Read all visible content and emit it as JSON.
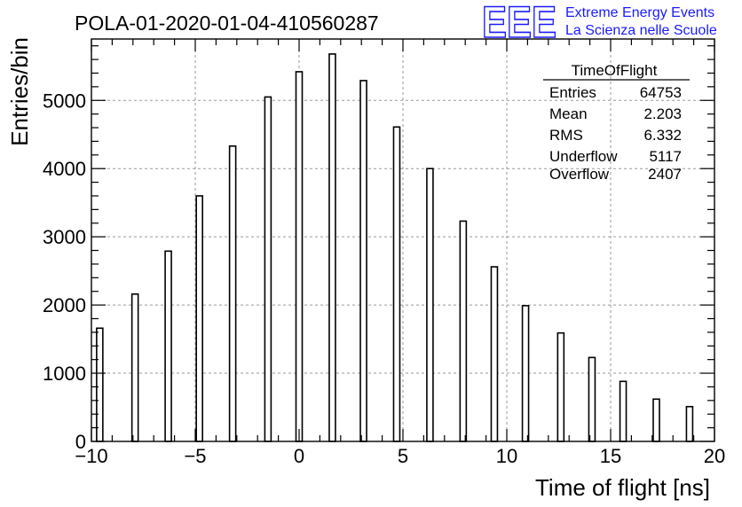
{
  "chart_data": {
    "type": "bar",
    "title": "POLA-01-2020-01-04-410560287",
    "xlabel": "Time of flight [ns]",
    "ylabel": "Entries/bin",
    "xlim": [
      -10,
      20
    ],
    "ylim": [
      0,
      5900
    ],
    "xticks": [
      "−10",
      "−5",
      "0",
      "5",
      "10",
      "15",
      "20"
    ],
    "yticks": [
      "0",
      "1000",
      "2000",
      "3000",
      "4000",
      "5000"
    ],
    "grid": true,
    "x": [
      -9.6,
      -7.9,
      -6.3,
      -4.8,
      -3.2,
      -1.5,
      0.0,
      1.6,
      3.1,
      4.7,
      6.3,
      7.9,
      9.4,
      10.9,
      12.6,
      14.1,
      15.6,
      17.2,
      18.8
    ],
    "values": [
      1660,
      2160,
      2790,
      3600,
      4330,
      5050,
      5420,
      5680,
      5290,
      4610,
      4000,
      3230,
      2560,
      1990,
      1590,
      1230,
      880,
      620,
      510
    ],
    "stats_box": {
      "title": "TimeOfFlight",
      "rows": [
        {
          "label": "Entries",
          "value": "64753"
        },
        {
          "label": "Mean",
          "value": "2.203"
        },
        {
          "label": "RMS",
          "value": "6.332"
        },
        {
          "label": "Underflow",
          "value": "5117"
        },
        {
          "label": "Overflow",
          "value": "2407"
        }
      ]
    }
  },
  "logo": {
    "letters": "EEE",
    "line1": "Extreme Energy Events",
    "line2": "La Scienza nelle Scuole",
    "color": "#1a1aff"
  }
}
